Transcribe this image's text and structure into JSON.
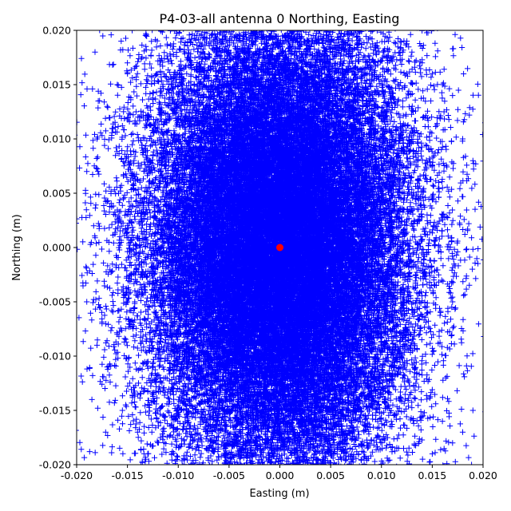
{
  "chart_data": {
    "type": "scatter",
    "title": "P4-03-all antenna 0 Northing, Easting",
    "xlabel": "Easting (m)",
    "ylabel": "Northing (m)",
    "xlim": [
      -0.02,
      0.02
    ],
    "ylim": [
      -0.02,
      0.02
    ],
    "x_ticks": [
      "-0.020",
      "-0.015",
      "-0.010",
      "-0.005",
      "0.000",
      "0.005",
      "0.010",
      "0.015",
      "0.020"
    ],
    "y_ticks": [
      "-0.020",
      "-0.015",
      "-0.010",
      "-0.005",
      "0.000",
      "0.005",
      "0.010",
      "0.015",
      "0.020"
    ],
    "grid": false,
    "legend": "none",
    "series": [
      {
        "marker": "plus",
        "color": "#0000ff",
        "distribution": {
          "center": [
            0.0,
            0.0
          ],
          "std_easting": 0.0065,
          "std_northing": 0.0105,
          "approx_point_count": 40000
        },
        "points": [
          [
            -0.0185,
            -0.014
          ],
          [
            -0.017,
            -0.011
          ],
          [
            -0.018,
            -0.009
          ],
          [
            -0.0175,
            -0.007
          ],
          [
            -0.019,
            -0.005
          ],
          [
            -0.0155,
            -0.015
          ],
          [
            -0.014,
            -0.017
          ],
          [
            -0.013,
            -0.019
          ],
          [
            -0.019,
            0.007
          ],
          [
            -0.018,
            0.01
          ],
          [
            -0.017,
            0.013
          ],
          [
            -0.016,
            0.015
          ],
          [
            -0.015,
            0.017
          ],
          [
            0.014,
            0.017
          ],
          [
            0.015,
            0.016
          ],
          [
            0.016,
            0.015
          ],
          [
            0.017,
            0.014
          ],
          [
            0.018,
            0.01
          ],
          [
            0.019,
            0.008
          ],
          [
            0.018,
            -0.017
          ],
          [
            0.017,
            -0.018
          ],
          [
            0.016,
            -0.016
          ],
          [
            0.019,
            -0.015
          ],
          [
            0.015,
            -0.019
          ],
          [
            0.013,
            0.018
          ],
          [
            0.0125,
            0.019
          ],
          [
            -0.016,
            -0.008
          ],
          [
            0.017,
            -0.005
          ]
        ]
      },
      {
        "marker": "circle",
        "color": "#ff0000",
        "points": [
          [
            0.0,
            0.0
          ]
        ]
      }
    ]
  }
}
